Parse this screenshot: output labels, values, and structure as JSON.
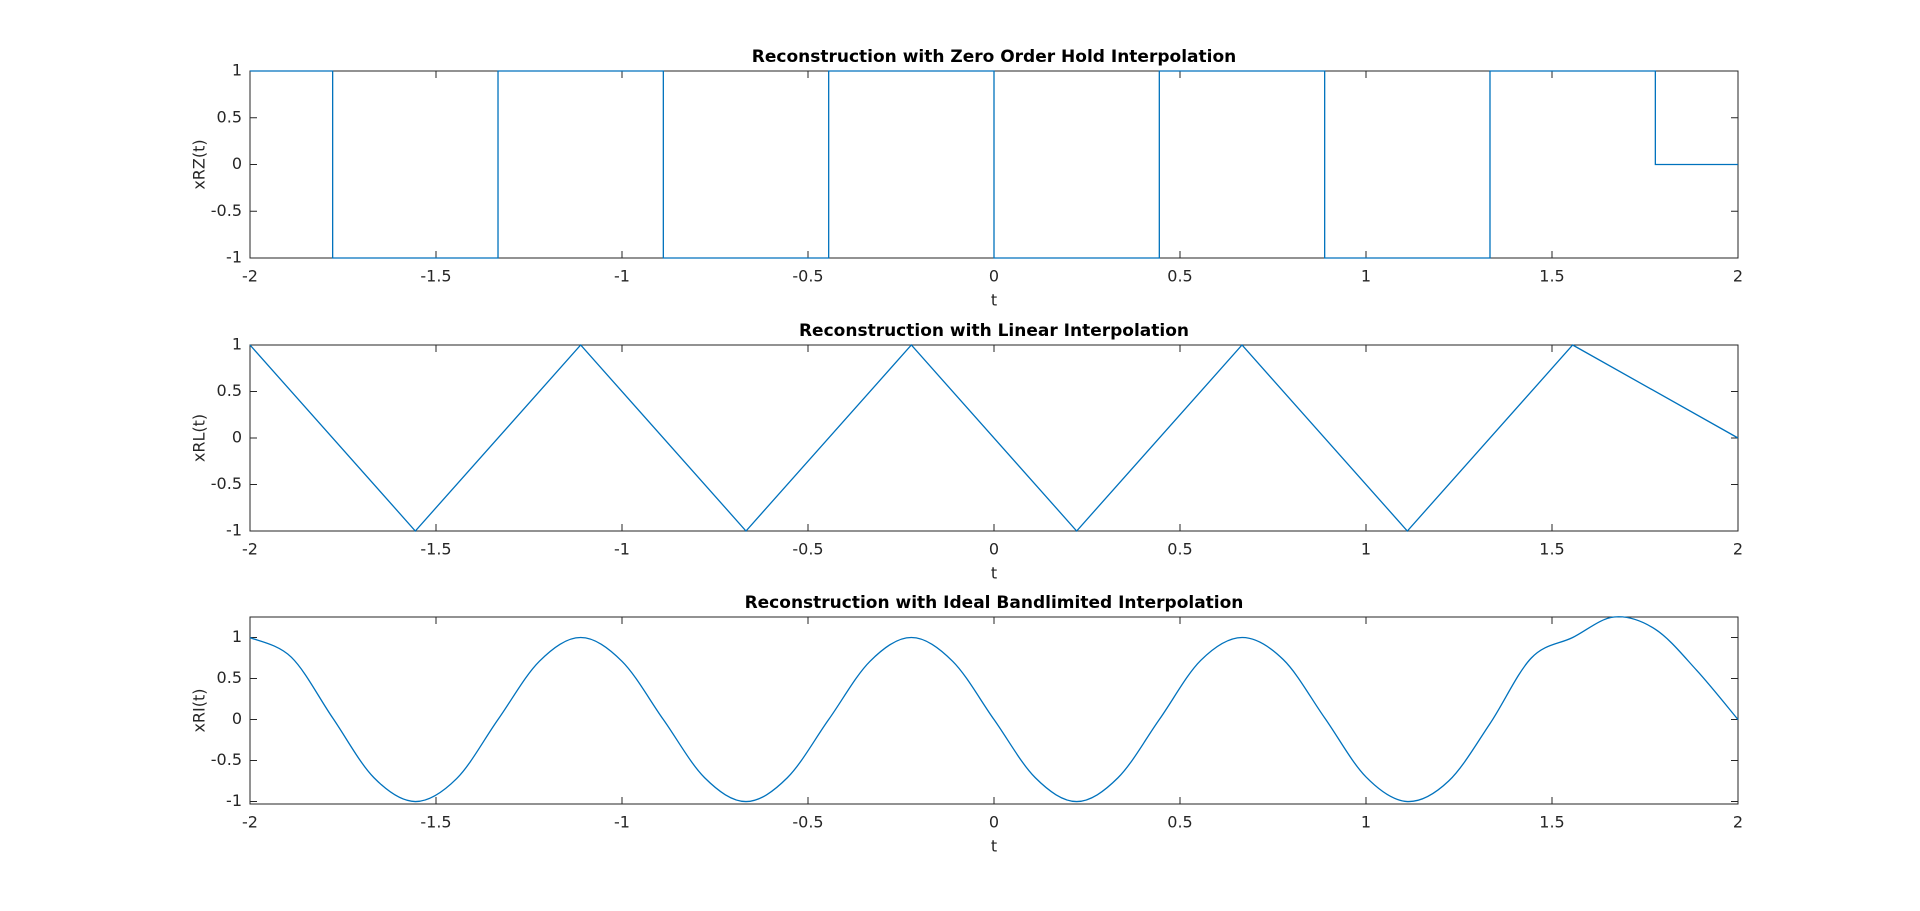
{
  "chart_data": [
    {
      "type": "line",
      "title": "Reconstruction with Zero Order Hold Interpolation",
      "xlabel": "t",
      "ylabel": "xRZ(t)",
      "x": [
        -2,
        -1.7778,
        -1.7778,
        -1.3333,
        -1.3333,
        -0.8889,
        -0.8889,
        -0.4444,
        -0.4444,
        0,
        0,
        0.4444,
        0.4444,
        0.8889,
        0.8889,
        1.3333,
        1.3333,
        1.7778,
        1.7778,
        2
      ],
      "series": [
        {
          "color": "#0072bd",
          "values": [
            1,
            1,
            -1,
            -1,
            1,
            1,
            -1,
            -1,
            1,
            1,
            -1,
            -1,
            1,
            1,
            -1,
            -1,
            1,
            1,
            0,
            0
          ]
        }
      ],
      "xlim": [
        -2,
        2
      ],
      "xticks": [
        -2,
        -1.5,
        -1,
        -0.5,
        0,
        0.5,
        1,
        1.5,
        2
      ],
      "ylim": [
        -1,
        1
      ],
      "yticks": [
        -1,
        -0.5,
        0,
        0.5,
        1
      ],
      "smooth": false
    },
    {
      "type": "line",
      "title": "Reconstruction with Linear Interpolation",
      "xlabel": "t",
      "ylabel": "xRL(t)",
      "x": [
        -2,
        -1.5556,
        -1.1111,
        -0.6667,
        -0.2222,
        0.2222,
        0.6667,
        1.1111,
        1.5556,
        2
      ],
      "series": [
        {
          "color": "#0072bd",
          "values": [
            1,
            -1,
            1,
            -1,
            1,
            -1,
            1,
            -1,
            1,
            0
          ]
        }
      ],
      "xlim": [
        -2,
        2
      ],
      "xticks": [
        -2,
        -1.5,
        -1,
        -0.5,
        0,
        0.5,
        1,
        1.5,
        2
      ],
      "ylim": [
        -1,
        1
      ],
      "yticks": [
        -1,
        -0.5,
        0,
        0.5,
        1
      ],
      "smooth": false
    },
    {
      "type": "line",
      "title": "Reconstruction with Ideal Bandlimited Interpolation",
      "xlabel": "t",
      "ylabel": "xRI(t)",
      "x": [
        -2,
        -1.8889,
        -1.7778,
        -1.6667,
        -1.5556,
        -1.4444,
        -1.3333,
        -1.2222,
        -1.1111,
        -1,
        -0.8889,
        -0.7778,
        -0.6667,
        -0.5556,
        -0.4444,
        -0.3333,
        -0.2222,
        -0.1111,
        0,
        0.1111,
        0.2222,
        0.3333,
        0.4444,
        0.5556,
        0.6667,
        0.7778,
        0.8889,
        1,
        1.1111,
        1.2222,
        1.3333,
        1.4444,
        1.5556,
        1.6667,
        1.7778,
        1.8889,
        2
      ],
      "series": [
        {
          "color": "#0072bd",
          "values": [
            1,
            0.76,
            0.02,
            -0.71,
            -1,
            -0.72,
            0,
            0.71,
            1,
            0.71,
            0,
            -0.71,
            -1,
            -0.71,
            0,
            0.71,
            1,
            0.71,
            0,
            -0.71,
            -1,
            -0.71,
            0,
            0.72,
            1,
            0.73,
            0.02,
            -0.7,
            -1,
            -0.75,
            -0.05,
            0.75,
            1,
            1.25,
            1.1,
            0.6,
            0
          ]
        }
      ],
      "xlim": [
        -2,
        2
      ],
      "xticks": [
        -2,
        -1.5,
        -1,
        -0.5,
        0,
        0.5,
        1,
        1.5,
        2
      ],
      "ylim": [
        -1.03,
        1.25
      ],
      "yticks": [
        -1,
        -0.5,
        0,
        0.5,
        1
      ],
      "smooth": true
    }
  ]
}
